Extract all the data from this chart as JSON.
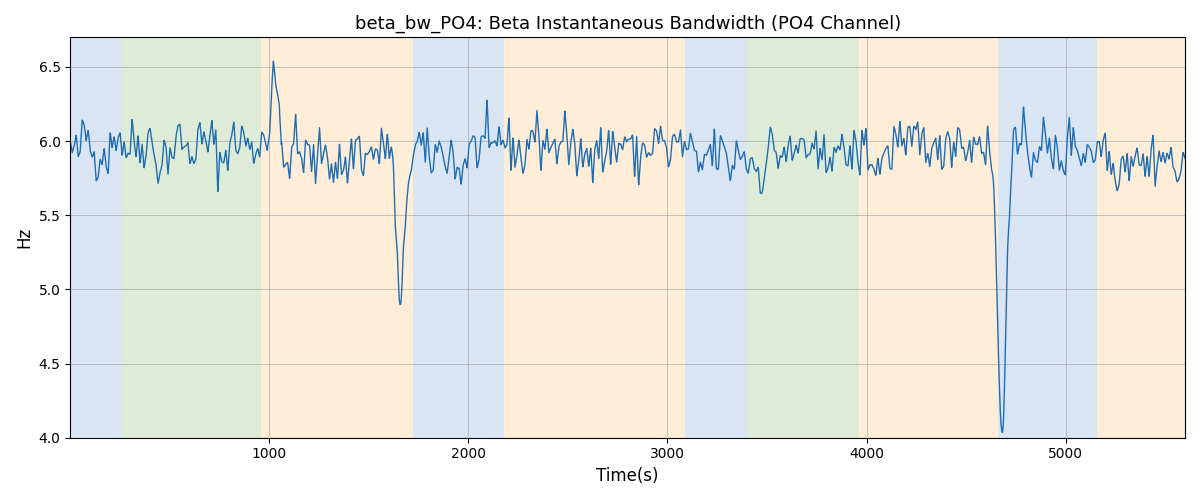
{
  "title": "beta_bw_PO4: Beta Instantaneous Bandwidth (PO4 Channel)",
  "xlabel": "Time(s)",
  "ylabel": "Hz",
  "ylim": [
    4.0,
    6.7
  ],
  "xlim": [
    0,
    5600
  ],
  "line_color": "#1f6eb4",
  "line_width": 1.0,
  "grid": true,
  "bg_regions": [
    {
      "xstart": 0,
      "xend": 260,
      "color": "#aec6e8",
      "alpha": 0.45
    },
    {
      "xstart": 260,
      "xend": 960,
      "color": "#b6d7a8",
      "alpha": 0.45
    },
    {
      "xstart": 960,
      "xend": 1720,
      "color": "#ffd9a8",
      "alpha": 0.45
    },
    {
      "xstart": 1720,
      "xend": 2180,
      "color": "#aec6e8",
      "alpha": 0.45
    },
    {
      "xstart": 2180,
      "xend": 3090,
      "color": "#ffd9a8",
      "alpha": 0.45
    },
    {
      "xstart": 3090,
      "xend": 3400,
      "color": "#aec6e8",
      "alpha": 0.45
    },
    {
      "xstart": 3400,
      "xend": 3960,
      "color": "#b6d7a8",
      "alpha": 0.45
    },
    {
      "xstart": 3960,
      "xend": 4660,
      "color": "#ffd9a8",
      "alpha": 0.45
    },
    {
      "xstart": 4660,
      "xend": 5160,
      "color": "#aec6e8",
      "alpha": 0.45
    },
    {
      "xstart": 5160,
      "xend": 5600,
      "color": "#ffd9a8",
      "alpha": 0.45
    }
  ],
  "seed": 42,
  "n_points": 560,
  "base_value": 5.93,
  "noise_std": 0.09,
  "slow_amp1": 0.04,
  "slow_period1": 2000,
  "slow_amp2": 0.025,
  "slow_period2": 700
}
